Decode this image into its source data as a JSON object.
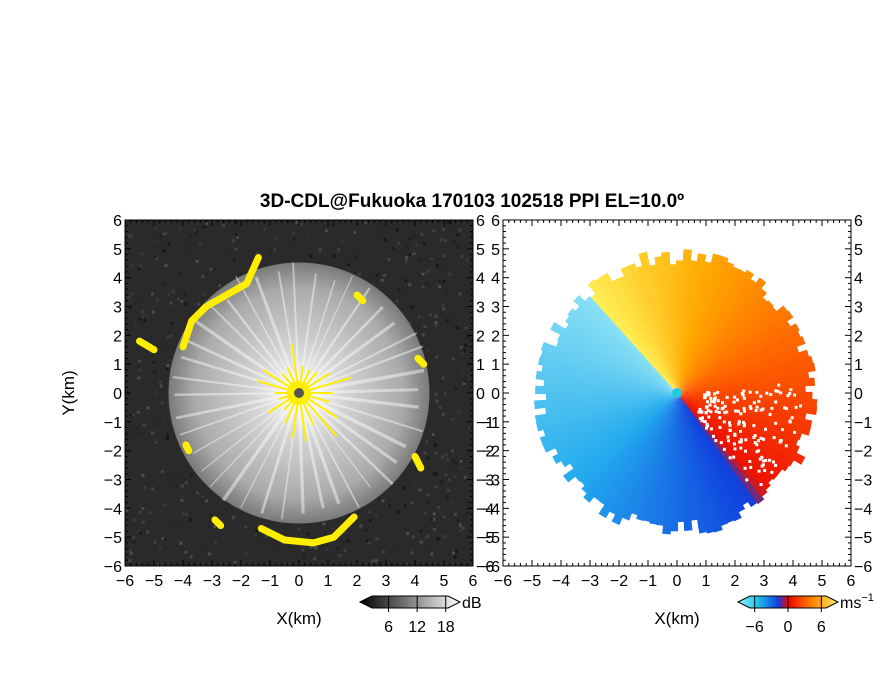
{
  "figure": {
    "title": "3D-CDL@Fukuoka 170103 102518 PPI EL=10.0º"
  },
  "colors": {
    "background": "#ffffff",
    "noise": "#2a2a2a",
    "echo_bright": "#e8e8e8",
    "highlight": "#ffee00",
    "radar_marker_left": "#555555",
    "radar_marker_right": "#22ccdd"
  },
  "chart_data": [
    {
      "type": "heatmap",
      "panel": "left",
      "field": "snr",
      "xlabel": "X(km)",
      "ylabel": "Y(km)",
      "xlim": [
        -6,
        6
      ],
      "ylim": [
        -6,
        6
      ],
      "xticks": [
        "−6",
        "−5",
        "−4",
        "−3",
        "−2",
        "−1",
        "0",
        "1",
        "2",
        "3",
        "4",
        "5",
        "6"
      ],
      "yticks": [
        "6",
        "5",
        "4",
        "3",
        "2",
        "1",
        "0",
        "−1",
        "−2",
        "−3",
        "−4",
        "−5",
        "−6"
      ],
      "coverage_radius_km": 4.5,
      "colorbar": {
        "unit": "dB",
        "ticks": [
          "6",
          "12",
          "18"
        ],
        "tick_values": [
          6,
          12,
          18
        ],
        "range": [
          0,
          21
        ]
      }
    },
    {
      "type": "heatmap",
      "panel": "right",
      "field": "doppler_velocity",
      "xlabel": "X(km)",
      "xlim": [
        -6,
        6
      ],
      "ylim": [
        -6,
        6
      ],
      "xticks": [
        "−6",
        "−5",
        "−4",
        "−3",
        "−2",
        "−1",
        "0",
        "1",
        "2",
        "3",
        "4",
        "5",
        "6"
      ],
      "yticks": [
        "6",
        "5",
        "4",
        "3",
        "2",
        "1",
        "0",
        "−1",
        "−2",
        "−3",
        "−4",
        "−5",
        "−6"
      ],
      "coverage_radius_km": 4.8,
      "colorbar": {
        "unit": "ms",
        "unit_exponent": "−1",
        "ticks": [
          "−6",
          "0",
          "6"
        ],
        "tick_values": [
          -6,
          0,
          6
        ],
        "range": [
          -9,
          9
        ]
      }
    }
  ]
}
